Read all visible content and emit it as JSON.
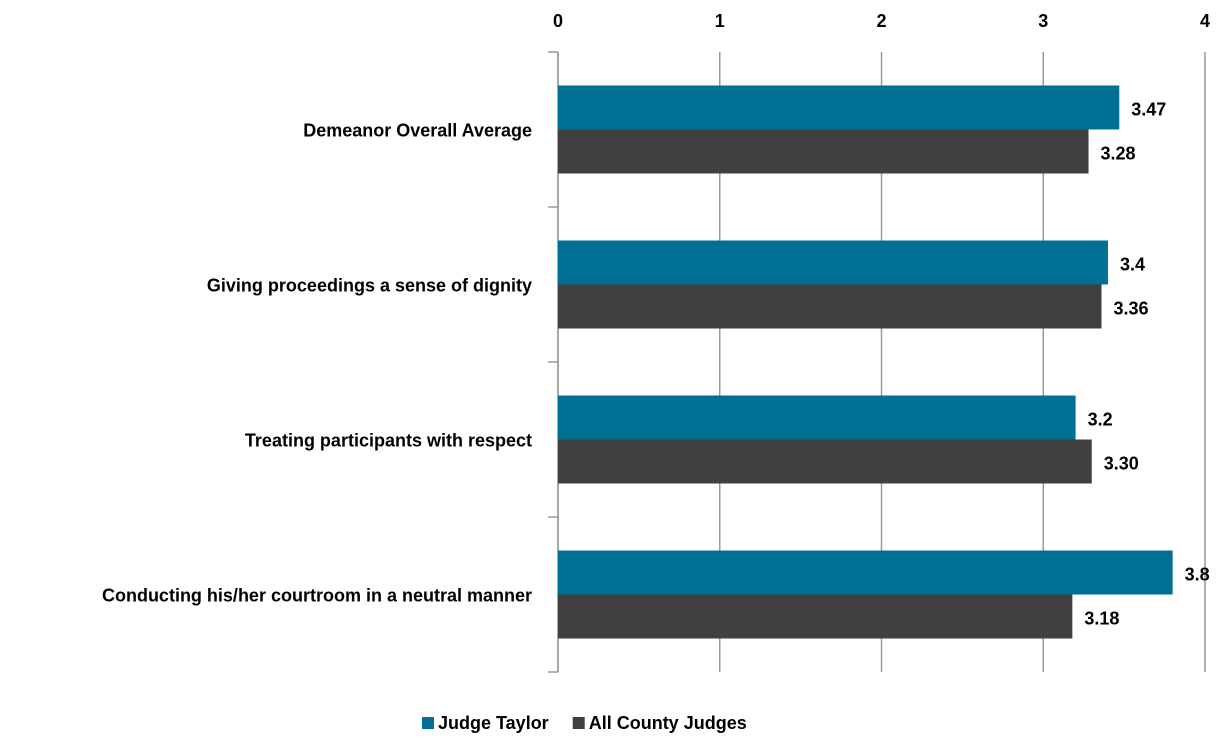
{
  "chart_data": {
    "type": "bar",
    "orientation": "horizontal",
    "categories": [
      "Demeanor Overall Average",
      "Giving proceedings a sense of dignity",
      "Treating participants with respect",
      "Conducting his/her courtroom in a neutral manner"
    ],
    "series": [
      {
        "name": "Judge Taylor",
        "color": "#006f94",
        "values": [
          3.47,
          3.4,
          3.2,
          3.8
        ],
        "value_labels": [
          "3.47",
          "3.4",
          "3.2",
          "3.8"
        ]
      },
      {
        "name": "All County Judges",
        "color": "#404040",
        "values": [
          3.28,
          3.36,
          3.3,
          3.18
        ],
        "value_labels": [
          "3.28",
          "3.36",
          "3.30",
          "3.18"
        ]
      }
    ],
    "xlim": [
      0,
      4
    ],
    "xticks": [
      0,
      1,
      2,
      3,
      4
    ],
    "grid": true,
    "legend": "bottom"
  }
}
